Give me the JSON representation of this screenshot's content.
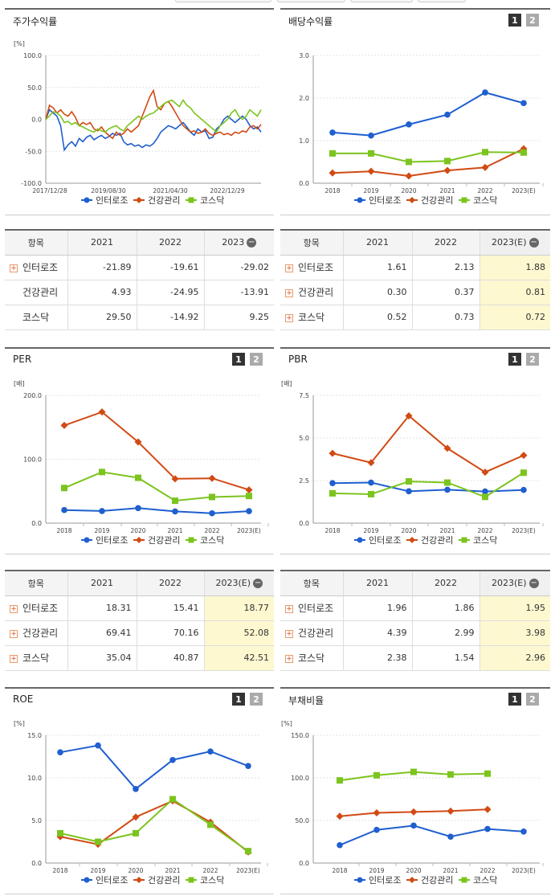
{
  "colors": {
    "s1": "#1f5fcf",
    "s2": "#d24a14",
    "s3": "#7cc41e"
  },
  "legend": [
    "인터로조",
    "건강관리",
    "코스닥"
  ],
  "chart_data": [
    {
      "id": "stock-return",
      "type": "line",
      "title": "주가수익률",
      "yunit": "[%]",
      "ylim": [
        -100,
        100
      ],
      "yticks": [
        "100.0",
        "50.0",
        "0.0",
        "-50.0",
        "-100.0"
      ],
      "xticks": [
        "2017/12/28",
        "2019/08/30",
        "2021/04/30",
        "2022/12/29"
      ],
      "series": [
        {
          "name": "인터로조",
          "values": [
            0,
            15,
            10,
            5,
            -10,
            -48,
            -40,
            -35,
            -42,
            -30,
            -35,
            -28,
            -25,
            -32,
            -28,
            -25,
            -30,
            -27,
            -22,
            -25,
            -22,
            -35,
            -40,
            -38,
            -42,
            -40,
            -44,
            -40,
            -42,
            -38,
            -30,
            -20,
            -15,
            -10,
            -12,
            -15,
            -10,
            -5,
            -12,
            -20,
            -25,
            -15,
            -20,
            -18,
            -30,
            -28,
            -15,
            -10,
            0,
            5,
            0,
            -5,
            0,
            5,
            0,
            -10,
            -15,
            -12,
            -20
          ]
        },
        {
          "name": "건강관리",
          "values": [
            0,
            22,
            18,
            10,
            15,
            8,
            5,
            12,
            3,
            -10,
            -5,
            -8,
            -5,
            -15,
            -18,
            -12,
            -20,
            -25,
            -30,
            -20,
            -25,
            -22,
            -15,
            -20,
            -15,
            -10,
            5,
            20,
            35,
            45,
            20,
            15,
            25,
            28,
            20,
            10,
            0,
            -10,
            -15,
            -20,
            -18,
            -22,
            -20,
            -15,
            -22,
            -25,
            -22,
            -20,
            -24,
            -22,
            -25,
            -20,
            -22,
            -18,
            -20,
            -12,
            -10,
            -15,
            -8
          ]
        },
        {
          "name": "코스닥",
          "values": [
            0,
            5,
            12,
            10,
            5,
            -5,
            -3,
            -8,
            -5,
            -10,
            -12,
            -15,
            -18,
            -20,
            -15,
            -18,
            -20,
            -15,
            -12,
            -10,
            -15,
            -18,
            -10,
            -5,
            0,
            5,
            0,
            5,
            8,
            10,
            15,
            20,
            25,
            28,
            30,
            25,
            20,
            30,
            22,
            18,
            10,
            5,
            0,
            -5,
            -10,
            -15,
            -20,
            -10,
            -5,
            0,
            10,
            15,
            5,
            0,
            5,
            15,
            10,
            5,
            15
          ]
        }
      ]
    },
    {
      "id": "dividend-yield",
      "type": "line",
      "title": "배당수익률",
      "yunit": "",
      "ylim": [
        0,
        3
      ],
      "yticks": [
        "3.0",
        "2.0",
        "1.0",
        "0.0"
      ],
      "xticks": [
        "2018",
        "2019",
        "2020",
        "2021",
        "2022",
        "2023(E)"
      ],
      "series": [
        {
          "name": "인터로조",
          "values": [
            1.19,
            1.12,
            1.38,
            1.61,
            2.13,
            1.88
          ]
        },
        {
          "name": "건강관리",
          "values": [
            0.24,
            0.28,
            0.17,
            0.3,
            0.37,
            0.81
          ]
        },
        {
          "name": "코스닥",
          "values": [
            0.7,
            0.7,
            0.5,
            0.52,
            0.73,
            0.72
          ]
        }
      ]
    },
    {
      "id": "per",
      "type": "line",
      "title": "PER",
      "yunit": "[배]",
      "ylim": [
        0,
        200
      ],
      "yticks": [
        "200.0",
        "100.0",
        "0.0"
      ],
      "xticks": [
        "2018",
        "2019",
        "2020",
        "2021",
        "2022",
        "2023(E)"
      ],
      "series": [
        {
          "name": "인터로조",
          "values": [
            20.5,
            19.0,
            23.5,
            18.31,
            15.41,
            18.77
          ]
        },
        {
          "name": "건강관리",
          "values": [
            153,
            174,
            127,
            69.41,
            70.16,
            52.08
          ]
        },
        {
          "name": "코스닥",
          "values": [
            55,
            80,
            71,
            35.04,
            40.87,
            42.51
          ]
        }
      ]
    },
    {
      "id": "pbr",
      "type": "line",
      "title": "PBR",
      "yunit": "[배]",
      "ylim": [
        0,
        7.5
      ],
      "yticks": [
        "7.5",
        "5.0",
        "2.5",
        "0.0"
      ],
      "xticks": [
        "2018",
        "2019",
        "2020",
        "2021",
        "2022",
        "2023(E)"
      ],
      "series": [
        {
          "name": "인터로조",
          "values": [
            2.35,
            2.38,
            1.87,
            1.96,
            1.86,
            1.95
          ]
        },
        {
          "name": "건강관리",
          "values": [
            4.1,
            3.55,
            6.3,
            4.39,
            2.99,
            3.98
          ]
        },
        {
          "name": "코스닥",
          "values": [
            1.75,
            1.7,
            2.45,
            2.38,
            1.54,
            2.96
          ]
        }
      ]
    },
    {
      "id": "roe",
      "type": "line",
      "title": "ROE",
      "yunit": "[%]",
      "ylim": [
        0,
        15
      ],
      "yticks": [
        "15.0",
        "10.0",
        "5.0",
        "0.0"
      ],
      "xticks": [
        "2018",
        "2019",
        "2020",
        "2021",
        "2022",
        "2023(E)"
      ],
      "series": [
        {
          "name": "인터로조",
          "values": [
            13.0,
            13.8,
            8.7,
            12.1,
            13.1,
            11.4
          ]
        },
        {
          "name": "건강관리",
          "values": [
            3.1,
            2.2,
            5.4,
            7.3,
            4.8,
            1.3
          ]
        },
        {
          "name": "코스닥",
          "values": [
            3.5,
            2.5,
            3.5,
            7.5,
            4.5,
            1.4
          ]
        }
      ]
    },
    {
      "id": "debt-ratio",
      "type": "line",
      "title": "부채비율",
      "yunit": "[%]",
      "ylim": [
        0,
        150
      ],
      "yticks": [
        "150.0",
        "100.0",
        "50.0",
        "0.0"
      ],
      "xticks": [
        "2018",
        "2019",
        "2020",
        "2021",
        "2022",
        "2023(E)"
      ],
      "series": [
        {
          "name": "인터로조",
          "values": [
            21,
            39,
            44,
            31,
            40,
            37
          ]
        },
        {
          "name": "건강관리",
          "values": [
            55,
            59,
            60,
            61,
            63,
            null
          ]
        },
        {
          "name": "코스닥",
          "values": [
            97,
            103,
            107,
            104,
            105,
            null
          ]
        }
      ]
    }
  ],
  "tables": [
    {
      "id": "stock-return-table",
      "head": [
        "항목",
        "2021",
        "2022",
        "2023"
      ],
      "hl": false,
      "rows": [
        {
          "label": "인터로조",
          "plus": true,
          "values": [
            "-21.89",
            "-19.61",
            "-29.02"
          ]
        },
        {
          "label": "건강관리",
          "plus": false,
          "values": [
            "4.93",
            "-24.95",
            "-13.91"
          ]
        },
        {
          "label": "코스닥",
          "plus": false,
          "values": [
            "29.50",
            "-14.92",
            "9.25"
          ]
        }
      ]
    },
    {
      "id": "dividend-table",
      "head": [
        "항목",
        "2021",
        "2022",
        "2023(E)"
      ],
      "hl": true,
      "rows": [
        {
          "label": "인터로조",
          "plus": true,
          "values": [
            "1.61",
            "2.13",
            "1.88"
          ]
        },
        {
          "label": "건강관리",
          "plus": true,
          "values": [
            "0.30",
            "0.37",
            "0.81"
          ]
        },
        {
          "label": "코스닥",
          "plus": true,
          "values": [
            "0.52",
            "0.73",
            "0.72"
          ]
        }
      ]
    },
    {
      "id": "per-table",
      "head": [
        "항목",
        "2021",
        "2022",
        "2023(E)"
      ],
      "hl": true,
      "rows": [
        {
          "label": "인터로조",
          "plus": true,
          "values": [
            "18.31",
            "15.41",
            "18.77"
          ]
        },
        {
          "label": "건강관리",
          "plus": true,
          "values": [
            "69.41",
            "70.16",
            "52.08"
          ]
        },
        {
          "label": "코스닥",
          "plus": true,
          "values": [
            "35.04",
            "40.87",
            "42.51"
          ]
        }
      ]
    },
    {
      "id": "pbr-table",
      "head": [
        "항목",
        "2021",
        "2022",
        "2023(E)"
      ],
      "hl": true,
      "rows": [
        {
          "label": "인터로조",
          "plus": true,
          "values": [
            "1.96",
            "1.86",
            "1.95"
          ]
        },
        {
          "label": "건강관리",
          "plus": true,
          "values": [
            "4.39",
            "2.99",
            "3.98"
          ]
        },
        {
          "label": "코스닥",
          "plus": true,
          "values": [
            "2.38",
            "1.54",
            "2.96"
          ]
        }
      ]
    }
  ],
  "pager": [
    "1",
    "2"
  ]
}
